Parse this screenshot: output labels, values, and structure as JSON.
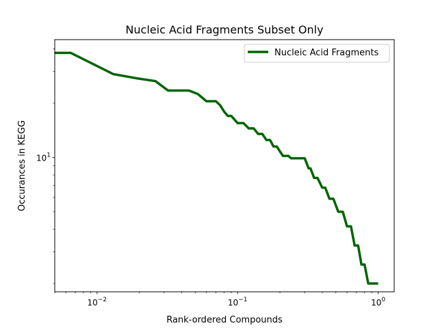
{
  "chart_data": {
    "type": "line",
    "title": "Nucleic Acid Fragments Subset Only",
    "xlabel": "Rank-ordered Compounds",
    "ylabel": "Occurances in KEGG",
    "xscale": "log",
    "yscale": "log",
    "xlim": [
      0.005,
      1.3
    ],
    "ylim": [
      1.8,
      45
    ],
    "legend": {
      "position": "top-right"
    },
    "grid": false,
    "x_ticks": [
      {
        "value": 0.01,
        "base": "10",
        "exp": "−2"
      },
      {
        "value": 0.1,
        "base": "10",
        "exp": "−1"
      },
      {
        "value": 1,
        "base": "10",
        "exp": "0"
      }
    ],
    "y_ticks": [
      {
        "value": 10,
        "base": "10",
        "exp": "1"
      }
    ],
    "series": [
      {
        "name": "Nucleic Acid Fragments",
        "color": "#006400",
        "x": [
          0.005,
          0.0065,
          0.013,
          0.019,
          0.026,
          0.032,
          0.045,
          0.052,
          0.06,
          0.07,
          0.075,
          0.08,
          0.085,
          0.09,
          0.1,
          0.11,
          0.12,
          0.13,
          0.14,
          0.15,
          0.16,
          0.17,
          0.18,
          0.19,
          0.2,
          0.21,
          0.23,
          0.24,
          0.25,
          0.27,
          0.3,
          0.32,
          0.33,
          0.35,
          0.37,
          0.4,
          0.42,
          0.45,
          0.48,
          0.52,
          0.56,
          0.6,
          0.64,
          0.68,
          0.72,
          0.76,
          0.8,
          0.85,
          0.9,
          0.95,
          1.0
        ],
        "y": [
          38,
          38,
          29,
          27.5,
          26.5,
          23.5,
          23.5,
          22.5,
          20.5,
          20.5,
          19.5,
          18,
          17,
          17,
          15.5,
          15.5,
          14.5,
          14.5,
          13.5,
          13.5,
          12.5,
          12.5,
          11.5,
          11.5,
          10.8,
          10.2,
          10.2,
          9.9,
          9.9,
          9.9,
          9.9,
          8.7,
          8.7,
          7.7,
          7.7,
          6.8,
          6.8,
          5.9,
          5.9,
          5.0,
          5.0,
          4.15,
          4.15,
          3.25,
          3.25,
          2.55,
          2.55,
          2.0,
          2.0,
          2.0,
          2.0
        ]
      }
    ]
  }
}
